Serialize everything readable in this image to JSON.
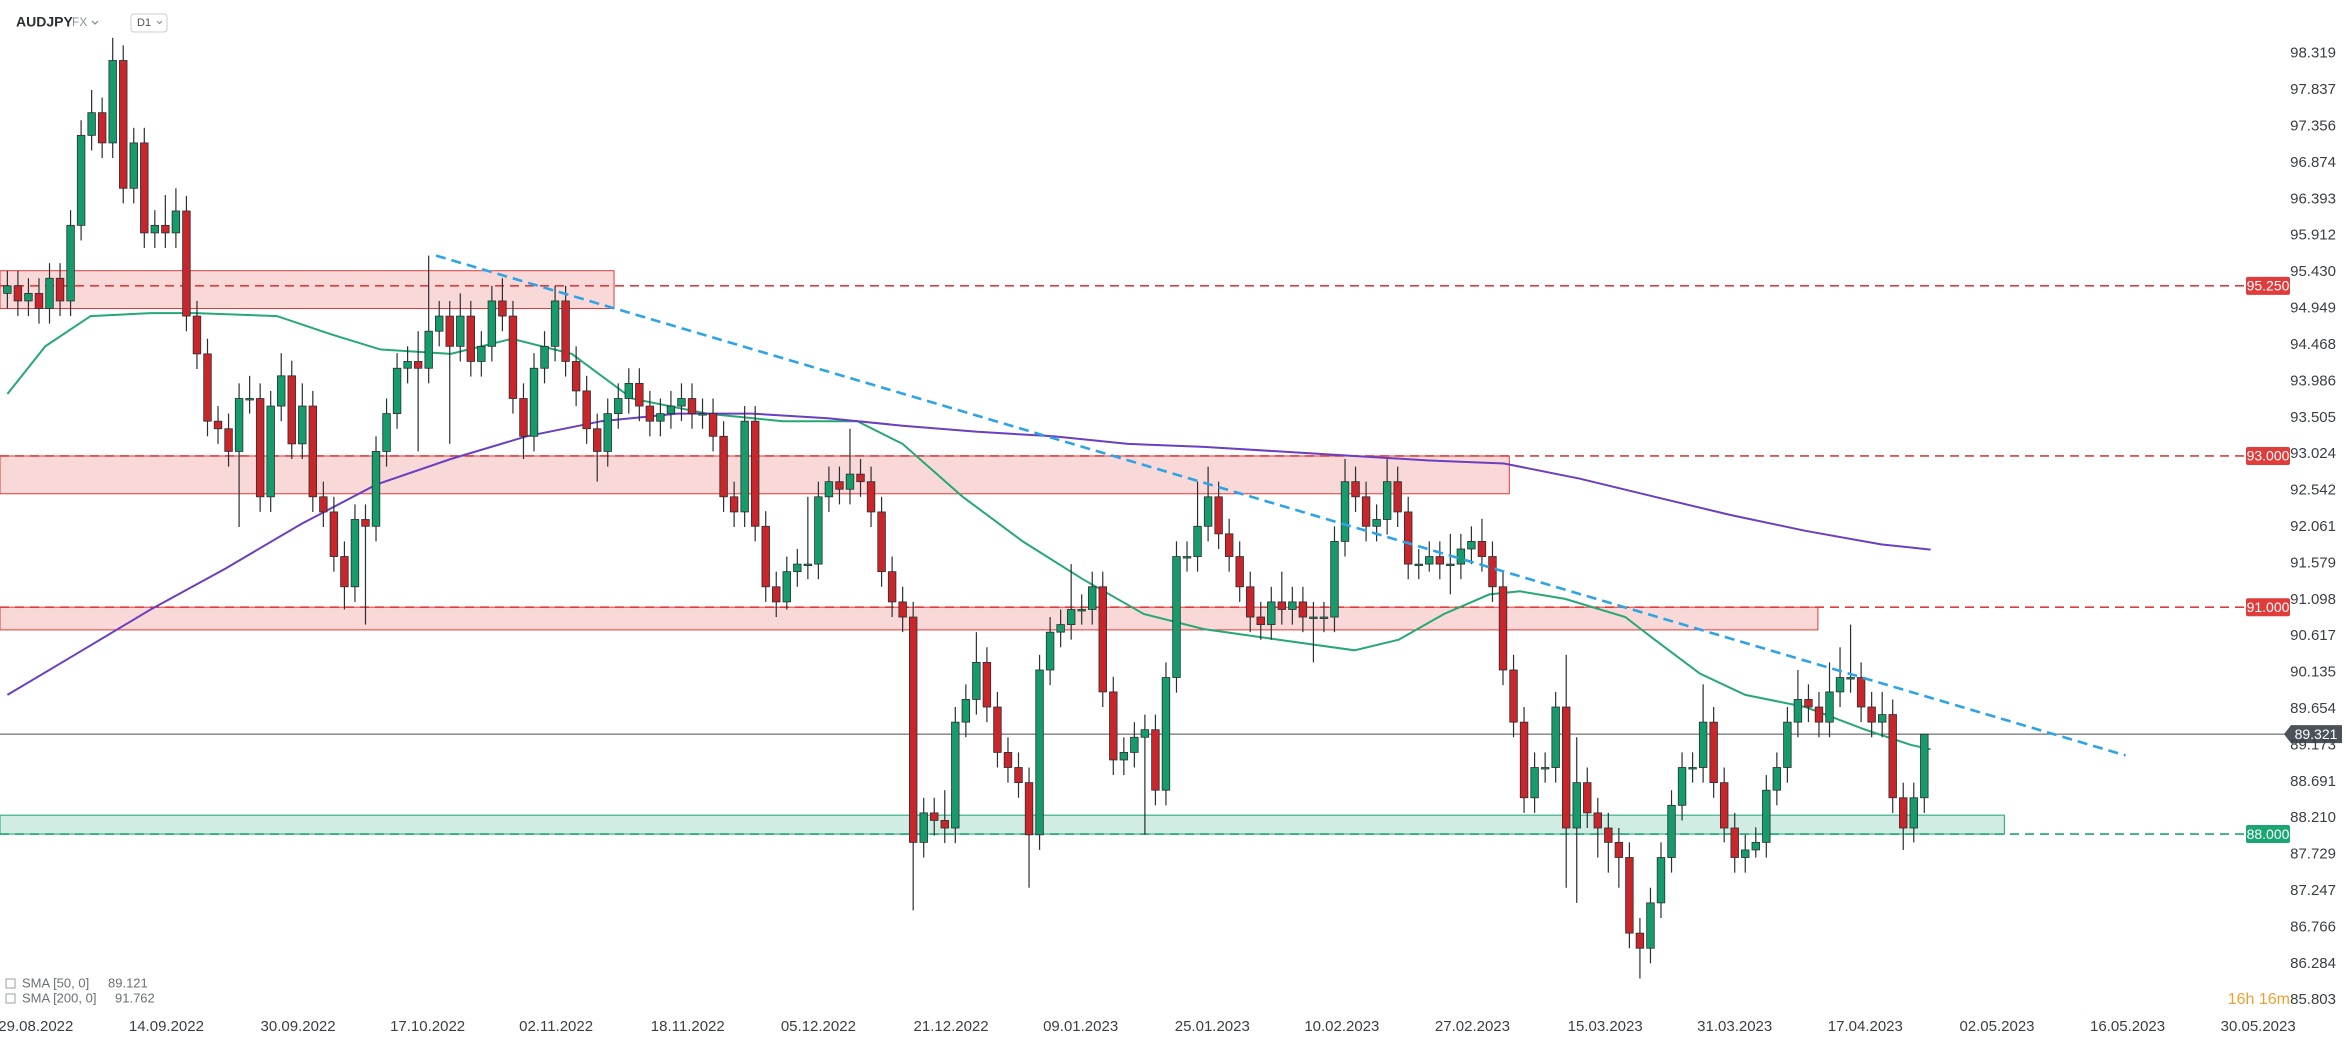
{
  "chart_data": {
    "type": "candlestick",
    "symbol": "AUDJPY",
    "market": "FX",
    "interval": "D1",
    "countdown": "16h 16m",
    "colors": {
      "up": "#169b6b",
      "down": "#c8262b",
      "wick": "#2b2f33"
    },
    "last_price": 89.321,
    "last_price_color": "#4b525a",
    "xlim": [
      -0.7,
      217.1
    ],
    "xticks": [
      {
        "value": 2.7,
        "label": "29.08.2022"
      },
      {
        "value": 15.1,
        "label": "14.09.2022"
      },
      {
        "value": 27.6,
        "label": "30.09.2022"
      },
      {
        "value": 39.9,
        "label": "17.10.2022"
      },
      {
        "value": 52.1,
        "label": "02.11.2022"
      },
      {
        "value": 64.6,
        "label": "18.11.2022"
      },
      {
        "value": 77,
        "label": "05.12.2022"
      },
      {
        "value": 89.6,
        "label": "21.12.2022"
      },
      {
        "value": 101.9,
        "label": "09.01.2023"
      },
      {
        "value": 114.4,
        "label": "25.01.2023"
      },
      {
        "value": 126.7,
        "label": "10.02.2023"
      },
      {
        "value": 139.1,
        "label": "27.02.2023"
      },
      {
        "value": 151.7,
        "label": "15.03.2023"
      },
      {
        "value": 164,
        "label": "31.03.2023"
      },
      {
        "value": 176.4,
        "label": "17.04.2023"
      },
      {
        "value": 188.9,
        "label": "02.05.2023"
      },
      {
        "value": 201.3,
        "label": "16.05.2023"
      },
      {
        "value": 213.7,
        "label": "30.05.2023"
      }
    ],
    "ylim": [
      85.66,
      99.03
    ],
    "yticks": [
      98.319,
      97.837,
      97.356,
      96.874,
      96.393,
      95.912,
      {
        "value": 95.43,
        "label": "95.430"
      },
      94.949,
      94.468,
      93.986,
      93.505,
      93.024,
      92.542,
      92.061,
      91.579,
      91.098,
      90.617,
      90.135,
      89.654,
      89.173,
      88.691,
      {
        "value": 88.21,
        "label": "88.210"
      },
      87.729,
      87.247,
      86.766,
      86.284,
      85.803
    ],
    "grid": false,
    "ohlc": [
      [
        95.15,
        95.45,
        94.95,
        95.25
      ],
      [
        95.25,
        95.45,
        94.85,
        95.05
      ],
      [
        95.05,
        95.35,
        94.85,
        95.15
      ],
      [
        95.15,
        95.35,
        94.75,
        94.95
      ],
      [
        94.95,
        95.55,
        94.75,
        95.35
      ],
      [
        95.35,
        95.55,
        94.85,
        95.05
      ],
      [
        95.05,
        96.25,
        94.85,
        96.05
      ],
      [
        96.05,
        97.44,
        95.85,
        97.24
      ],
      [
        97.24,
        97.84,
        97.04,
        97.54
      ],
      [
        97.54,
        97.74,
        96.94,
        97.14
      ],
      [
        97.14,
        98.53,
        96.94,
        98.23
      ],
      [
        98.23,
        98.43,
        96.34,
        96.54
      ],
      [
        96.54,
        97.34,
        96.34,
        97.14
      ],
      [
        97.14,
        97.34,
        95.75,
        95.95
      ],
      [
        95.95,
        96.25,
        95.75,
        96.05
      ],
      [
        96.05,
        96.45,
        95.75,
        95.95
      ],
      [
        95.95,
        96.54,
        95.75,
        96.24
      ],
      [
        96.24,
        96.44,
        94.65,
        94.85
      ],
      [
        94.85,
        95.05,
        94.15,
        94.35
      ],
      [
        94.35,
        94.55,
        93.26,
        93.46
      ],
      [
        93.46,
        93.66,
        93.16,
        93.36
      ],
      [
        93.36,
        93.56,
        92.86,
        93.06
      ],
      [
        93.06,
        93.96,
        92.06,
        93.76
      ],
      [
        93.76,
        94.06,
        93.56,
        93.76
      ],
      [
        93.76,
        93.96,
        92.26,
        92.46
      ],
      [
        92.46,
        93.86,
        92.26,
        93.66
      ],
      [
        93.66,
        94.36,
        93.46,
        94.06
      ],
      [
        94.06,
        94.26,
        92.96,
        93.16
      ],
      [
        93.16,
        93.96,
        92.96,
        93.66
      ],
      [
        93.66,
        93.86,
        92.26,
        92.46
      ],
      [
        92.46,
        92.66,
        92.06,
        92.26
      ],
      [
        92.26,
        92.46,
        91.47,
        91.67
      ],
      [
        91.67,
        91.87,
        90.97,
        91.27
      ],
      [
        91.27,
        92.36,
        91.07,
        92.16
      ],
      [
        92.16,
        92.36,
        90.77,
        92.07
      ],
      [
        92.07,
        93.26,
        91.87,
        93.06
      ],
      [
        93.06,
        93.76,
        92.86,
        93.56
      ],
      [
        93.56,
        94.36,
        93.36,
        94.16
      ],
      [
        94.16,
        94.45,
        93.96,
        94.25
      ],
      [
        94.25,
        94.65,
        93.06,
        94.16
      ],
      [
        94.16,
        95.65,
        93.96,
        94.65
      ],
      [
        94.65,
        95.05,
        94.45,
        94.85
      ],
      [
        94.85,
        95.05,
        93.16,
        94.45
      ],
      [
        94.45,
        95.15,
        94.25,
        94.85
      ],
      [
        94.85,
        95.05,
        94.05,
        94.25
      ],
      [
        94.25,
        94.65,
        94.05,
        94.45
      ],
      [
        94.45,
        95.25,
        94.25,
        95.05
      ],
      [
        95.05,
        95.35,
        94.65,
        94.85
      ],
      [
        94.85,
        95.05,
        93.56,
        93.76
      ],
      [
        93.76,
        93.96,
        92.96,
        93.26
      ],
      [
        93.26,
        94.36,
        93.06,
        94.16
      ],
      [
        94.16,
        94.65,
        93.96,
        94.45
      ],
      [
        94.45,
        95.25,
        94.25,
        95.05
      ],
      [
        95.05,
        95.25,
        94.05,
        94.25
      ],
      [
        94.25,
        94.45,
        93.66,
        93.86
      ],
      [
        93.86,
        94.06,
        93.16,
        93.36
      ],
      [
        93.36,
        93.56,
        92.66,
        93.06
      ],
      [
        93.06,
        93.76,
        92.86,
        93.56
      ],
      [
        93.56,
        93.96,
        93.36,
        93.76
      ],
      [
        93.76,
        94.16,
        93.56,
        93.96
      ],
      [
        93.96,
        94.16,
        93.46,
        93.66
      ],
      [
        93.66,
        93.86,
        93.26,
        93.46
      ],
      [
        93.46,
        93.76,
        93.26,
        93.56
      ],
      [
        93.56,
        93.86,
        93.36,
        93.66
      ],
      [
        93.66,
        93.96,
        93.46,
        93.76
      ],
      [
        93.76,
        93.96,
        93.36,
        93.56
      ],
      [
        93.56,
        93.76,
        93.36,
        93.56
      ],
      [
        93.56,
        93.76,
        93.06,
        93.26
      ],
      [
        93.26,
        93.46,
        92.26,
        92.46
      ],
      [
        92.46,
        92.66,
        92.06,
        92.26
      ],
      [
        92.26,
        93.66,
        92.06,
        93.46
      ],
      [
        93.46,
        93.66,
        91.87,
        92.07
      ],
      [
        92.07,
        92.27,
        91.07,
        91.27
      ],
      [
        91.27,
        91.47,
        90.87,
        91.07
      ],
      [
        91.07,
        91.67,
        90.97,
        91.47
      ],
      [
        91.47,
        91.77,
        91.27,
        91.57
      ],
      [
        91.57,
        92.46,
        91.37,
        91.57
      ],
      [
        91.57,
        92.66,
        91.37,
        92.46
      ],
      [
        92.46,
        92.86,
        92.26,
        92.66
      ],
      [
        92.66,
        92.86,
        92.36,
        92.56
      ],
      [
        92.56,
        93.36,
        92.36,
        92.76
      ],
      [
        92.76,
        92.96,
        92.46,
        92.66
      ],
      [
        92.66,
        92.86,
        92.06,
        92.26
      ],
      [
        92.26,
        92.46,
        91.27,
        91.47
      ],
      [
        91.47,
        91.67,
        90.87,
        91.07
      ],
      [
        91.07,
        91.27,
        90.67,
        90.87
      ],
      [
        90.87,
        91.07,
        86.99,
        87.89
      ],
      [
        87.89,
        88.48,
        87.69,
        88.28
      ],
      [
        88.28,
        88.48,
        87.98,
        88.18
      ],
      [
        88.18,
        88.58,
        87.88,
        88.08
      ],
      [
        88.08,
        89.68,
        87.88,
        89.48
      ],
      [
        89.48,
        89.98,
        89.28,
        89.78
      ],
      [
        89.78,
        90.67,
        89.58,
        90.27
      ],
      [
        90.27,
        90.47,
        89.48,
        89.68
      ],
      [
        89.68,
        89.88,
        88.88,
        89.08
      ],
      [
        89.08,
        89.28,
        88.68,
        88.88
      ],
      [
        88.88,
        89.08,
        88.48,
        88.68
      ],
      [
        88.68,
        88.88,
        87.29,
        87.99
      ],
      [
        87.99,
        90.37,
        87.79,
        90.17
      ],
      [
        90.17,
        90.87,
        89.97,
        90.67
      ],
      [
        90.67,
        90.97,
        90.47,
        90.77
      ],
      [
        90.77,
        91.57,
        90.57,
        90.97
      ],
      [
        90.97,
        91.17,
        90.77,
        90.97
      ],
      [
        90.97,
        91.47,
        90.77,
        91.27
      ],
      [
        91.27,
        91.47,
        89.68,
        89.88
      ],
      [
        89.88,
        90.08,
        88.78,
        88.98
      ],
      [
        88.98,
        89.28,
        88.78,
        89.08
      ],
      [
        89.08,
        89.48,
        88.88,
        89.28
      ],
      [
        89.28,
        89.58,
        87.99,
        89.38
      ],
      [
        89.38,
        89.58,
        88.38,
        88.58
      ],
      [
        88.58,
        90.27,
        88.38,
        90.07
      ],
      [
        90.07,
        91.87,
        89.87,
        91.67
      ],
      [
        91.67,
        91.87,
        91.47,
        91.67
      ],
      [
        91.67,
        92.66,
        91.47,
        92.07
      ],
      [
        92.07,
        92.86,
        91.87,
        92.46
      ],
      [
        92.46,
        92.66,
        91.77,
        91.97
      ],
      [
        91.97,
        92.17,
        91.47,
        91.67
      ],
      [
        91.67,
        91.87,
        91.07,
        91.27
      ],
      [
        91.27,
        91.47,
        90.67,
        90.87
      ],
      [
        90.87,
        91.07,
        90.57,
        90.77
      ],
      [
        90.77,
        91.27,
        90.57,
        91.07
      ],
      [
        91.07,
        91.47,
        90.77,
        90.97
      ],
      [
        90.97,
        91.27,
        90.77,
        91.07
      ],
      [
        91.07,
        91.27,
        90.67,
        90.87
      ],
      [
        90.87,
        91.07,
        90.27,
        90.87
      ],
      [
        90.87,
        91.07,
        90.67,
        90.87
      ],
      [
        90.87,
        92.07,
        90.67,
        91.87
      ],
      [
        91.87,
        92.96,
        91.67,
        92.66
      ],
      [
        92.66,
        92.86,
        92.26,
        92.46
      ],
      [
        92.46,
        92.66,
        91.87,
        92.07
      ],
      [
        92.07,
        92.36,
        91.87,
        92.16
      ],
      [
        92.16,
        92.96,
        91.96,
        92.66
      ],
      [
        92.66,
        92.86,
        92.06,
        92.26
      ],
      [
        92.26,
        92.46,
        91.37,
        91.57
      ],
      [
        91.57,
        91.77,
        91.37,
        91.57
      ],
      [
        91.57,
        91.87,
        91.47,
        91.67
      ],
      [
        91.67,
        91.87,
        91.37,
        91.57
      ],
      [
        91.57,
        91.97,
        91.17,
        91.57
      ],
      [
        91.57,
        91.97,
        91.37,
        91.77
      ],
      [
        91.77,
        92.07,
        91.57,
        91.87
      ],
      [
        91.87,
        92.17,
        91.47,
        91.67
      ],
      [
        91.67,
        91.87,
        91.07,
        91.27
      ],
      [
        91.27,
        91.47,
        89.97,
        90.17
      ],
      [
        90.17,
        90.37,
        89.28,
        89.48
      ],
      [
        89.48,
        89.68,
        88.28,
        88.48
      ],
      [
        88.48,
        89.08,
        88.28,
        88.88
      ],
      [
        88.88,
        89.08,
        88.68,
        88.88
      ],
      [
        88.88,
        89.88,
        88.68,
        89.68
      ],
      [
        89.68,
        90.37,
        87.29,
        88.08
      ],
      [
        88.08,
        89.28,
        87.09,
        88.68
      ],
      [
        88.68,
        88.88,
        88.08,
        88.28
      ],
      [
        88.28,
        88.48,
        87.69,
        88.08
      ],
      [
        88.08,
        88.28,
        87.49,
        87.89
      ],
      [
        87.89,
        88.08,
        87.29,
        87.69
      ],
      [
        87.69,
        87.89,
        86.49,
        86.69
      ],
      [
        86.69,
        86.89,
        86.09,
        86.49
      ],
      [
        86.49,
        87.29,
        86.29,
        87.09
      ],
      [
        87.09,
        87.89,
        86.89,
        87.69
      ],
      [
        87.69,
        88.58,
        87.49,
        88.38
      ],
      [
        88.38,
        89.08,
        88.18,
        88.88
      ],
      [
        88.88,
        89.08,
        88.68,
        88.88
      ],
      [
        88.88,
        89.98,
        88.68,
        89.48
      ],
      [
        89.48,
        89.68,
        88.48,
        88.68
      ],
      [
        88.68,
        88.88,
        87.89,
        88.08
      ],
      [
        88.08,
        88.28,
        87.49,
        87.69
      ],
      [
        87.69,
        87.99,
        87.49,
        87.79
      ],
      [
        87.79,
        88.09,
        87.69,
        87.89
      ],
      [
        87.89,
        88.78,
        87.69,
        88.58
      ],
      [
        88.58,
        89.08,
        88.38,
        88.88
      ],
      [
        88.88,
        89.68,
        88.68,
        89.48
      ],
      [
        89.48,
        90.17,
        89.28,
        89.78
      ],
      [
        89.78,
        89.98,
        89.48,
        89.68
      ],
      [
        89.68,
        89.88,
        89.28,
        89.48
      ],
      [
        89.48,
        90.27,
        89.28,
        89.88
      ],
      [
        89.88,
        90.47,
        89.68,
        90.07
      ],
      [
        90.07,
        90.77,
        89.87,
        90.07
      ],
      [
        90.07,
        90.27,
        89.48,
        89.68
      ],
      [
        89.68,
        89.88,
        89.28,
        89.48
      ],
      [
        89.48,
        89.88,
        89.28,
        89.58
      ],
      [
        89.58,
        89.78,
        88.28,
        88.48
      ],
      [
        88.48,
        88.68,
        87.79,
        88.08
      ],
      [
        88.08,
        88.68,
        87.89,
        88.48
      ],
      [
        88.48,
        89.32,
        88.28,
        89.321
      ]
    ],
    "series": [
      {
        "name": "SMA [50, 0]",
        "color": "#25a874",
        "x": [
          0,
          3.6,
          7.9,
          13.6,
          17.9,
          25.6,
          30.7,
          35.4,
          42.1,
          47.9,
          53.6,
          59.3,
          66.4,
          73.6,
          80.7,
          85,
          90.7,
          96.4,
          102.1,
          107.9,
          113.6,
          120.7,
          127.9,
          132.1,
          136.4,
          140.7,
          143.6,
          147.9,
          153.6,
          156.4,
          160.7,
          165,
          170.7,
          176.4,
          180.7,
          182.6
        ],
        "values": [
          93.82,
          94.45,
          94.85,
          94.89,
          94.89,
          94.85,
          94.61,
          94.41,
          94.35,
          94.55,
          94.35,
          93.76,
          93.56,
          93.46,
          93.46,
          93.16,
          92.46,
          91.87,
          91.37,
          90.91,
          90.71,
          90.57,
          90.43,
          90.57,
          90.91,
          91.17,
          91.21,
          91.11,
          90.87,
          90.57,
          90.12,
          89.84,
          89.68,
          89.38,
          89.18,
          89.121
        ]
      },
      {
        "name": "SMA [200, 0]",
        "color": "#6a3fc0",
        "x": [
          0,
          6.4,
          13.6,
          20.7,
          27.9,
          35,
          42.1,
          49.3,
          56.4,
          63.6,
          70.7,
          77.9,
          85,
          92.1,
          99.3,
          106.4,
          113.6,
          120.7,
          127.9,
          135,
          142.1,
          149.3,
          156.4,
          163.6,
          170.7,
          177.9,
          182.6
        ],
        "values": [
          89.84,
          90.37,
          90.97,
          91.51,
          92.1,
          92.62,
          92.96,
          93.26,
          93.46,
          93.56,
          93.56,
          93.5,
          93.4,
          93.32,
          93.26,
          93.16,
          93.12,
          93.06,
          93.0,
          92.94,
          92.9,
          92.7,
          92.46,
          92.22,
          92.01,
          91.83,
          91.762
        ]
      }
    ],
    "levels": [
      {
        "value": 95.25,
        "label": "95.250",
        "color": "#e03c3c"
      },
      {
        "value": 93,
        "label": "93.000",
        "color": "#e03c3c"
      },
      {
        "value": 91,
        "label": "91.000",
        "color": "#e03c3c"
      },
      {
        "value": 88,
        "label": "88.000",
        "color": "#19a673"
      }
    ],
    "zones": [
      {
        "top": 95.45,
        "bottom": 94.95,
        "x": [
          -0.7,
          57.6
        ],
        "color": "#e03c3c"
      },
      {
        "top": 93,
        "bottom": 92.5,
        "x": [
          -0.7,
          142.6
        ],
        "color": "#e03c3c"
      },
      {
        "top": 91,
        "bottom": 90.7,
        "x": [
          -0.7,
          171.9
        ],
        "color": "#e03c3c"
      },
      {
        "top": 88.25,
        "bottom": 88,
        "x": [
          -0.7,
          189.6
        ],
        "color": "#19a673"
      }
    ],
    "trendline": {
      "x": [
        40.7,
        201.1
      ],
      "values": [
        95.65,
        89.04
      ],
      "color": "#2ea3e6"
    }
  }
}
